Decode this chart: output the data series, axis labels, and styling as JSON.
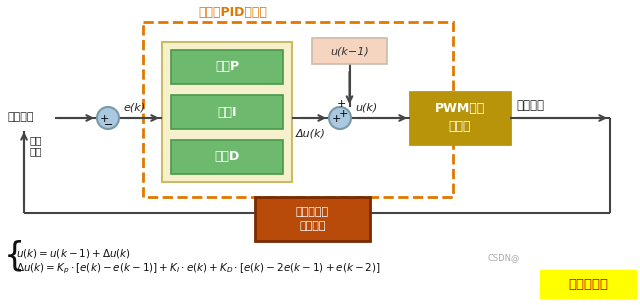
{
  "bg_color": "#ffffff",
  "title": "增量式PID控制器",
  "title_color": "#e07800",
  "pid_box_color": "#e07800",
  "pid_inner_bg": "#f7f0cc",
  "pid_inner_border": "#ccbb66",
  "green_block_color": "#6db96d",
  "green_block_border": "#4a994a",
  "pwm_box_bg": "#b8940a",
  "encoder_box_bg": "#b84a0a",
  "encoder_box_border": "#7a2a00",
  "uk1_box_bg": "#f5d5c0",
  "uk1_box_border": "#ccbbaa",
  "circle_face": "#aac8e0",
  "circle_edge": "#7799aa",
  "line_color": "#444444",
  "text_color": "#222222",
  "formula_color": "#111111",
  "block_pid_labels": [
    "比例P",
    "积分I",
    "微分D"
  ],
  "label_seding": "设定转速",
  "label_actual": "实际\n转速",
  "label_ek": "e(k)",
  "label_uk": "u(k)",
  "label_delta_uk": "Δu(k)",
  "label_uk1": "u(k−1)",
  "label_pwm": "PWM输出\n至电机",
  "label_motor": "电机转动",
  "label_encoder": "编码器测速\n（反馈）",
  "watermark_text": "我爱单片机",
  "csdn_text": "CSDN@"
}
